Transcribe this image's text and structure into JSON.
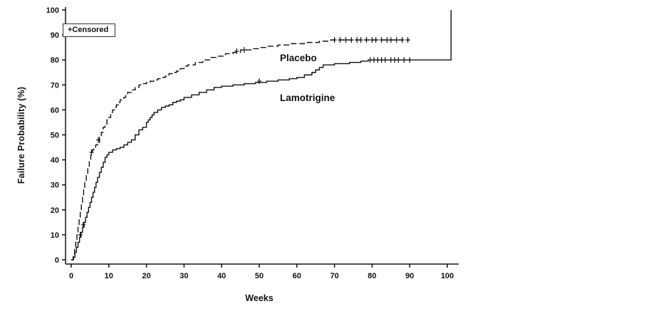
{
  "figure": {
    "background": "#ffffff",
    "line_color": "#111111"
  },
  "chart_data": {
    "type": "line",
    "subtype": "kaplan-meier-step",
    "title": "",
    "xlabel": "Weeks",
    "ylabel": "Failure Probability (%)",
    "xlim": [
      0,
      100
    ],
    "ylim": [
      0,
      100
    ],
    "xticks": [
      0,
      10,
      20,
      30,
      40,
      50,
      60,
      70,
      80,
      90,
      100
    ],
    "yticks": [
      0,
      10,
      20,
      30,
      40,
      50,
      60,
      70,
      80,
      90,
      100
    ],
    "grid": false,
    "legend": {
      "label": "+Censored",
      "position": "top-left"
    },
    "series": [
      {
        "name": "Placebo",
        "line_style": "dashed",
        "label_pos": [
          55.5,
          79.5
        ],
        "points": [
          [
            0,
            0
          ],
          [
            0.5,
            2
          ],
          [
            0.9,
            4
          ],
          [
            1.2,
            7
          ],
          [
            1.5,
            10
          ],
          [
            1.8,
            13
          ],
          [
            2.1,
            16
          ],
          [
            2.4,
            19
          ],
          [
            2.7,
            22
          ],
          [
            3,
            25
          ],
          [
            3.3,
            28
          ],
          [
            3.6,
            31
          ],
          [
            4,
            34
          ],
          [
            4.4,
            37
          ],
          [
            4.8,
            40
          ],
          [
            5.2,
            42
          ],
          [
            5.6,
            44
          ],
          [
            6,
            45
          ],
          [
            6.5,
            46
          ],
          [
            7,
            47
          ],
          [
            7.5,
            49
          ],
          [
            8,
            51
          ],
          [
            8.5,
            53
          ],
          [
            9,
            54
          ],
          [
            9.5,
            56
          ],
          [
            10,
            57
          ],
          [
            10.5,
            59
          ],
          [
            11,
            60
          ],
          [
            11.5,
            61
          ],
          [
            12,
            62
          ],
          [
            12.5,
            63
          ],
          [
            13,
            64
          ],
          [
            14,
            65
          ],
          [
            14.5,
            66
          ],
          [
            15,
            67
          ],
          [
            16,
            68
          ],
          [
            17,
            69
          ],
          [
            18,
            70
          ],
          [
            19,
            70.5
          ],
          [
            20,
            71
          ],
          [
            21,
            71.5
          ],
          [
            22,
            72
          ],
          [
            23,
            72.5
          ],
          [
            24,
            73
          ],
          [
            25,
            73.5
          ],
          [
            26,
            74.5
          ],
          [
            27,
            75
          ],
          [
            28,
            75.5
          ],
          [
            29,
            76.5
          ],
          [
            30,
            77.5
          ],
          [
            31,
            78
          ],
          [
            33,
            79
          ],
          [
            35,
            80
          ],
          [
            37,
            81
          ],
          [
            39,
            81.5
          ],
          [
            41,
            82.5
          ],
          [
            43,
            83
          ],
          [
            45,
            84
          ],
          [
            48,
            84.5
          ],
          [
            50,
            85
          ],
          [
            52,
            85.5
          ],
          [
            55,
            86
          ],
          [
            58,
            86.5
          ],
          [
            62,
            87
          ],
          [
            66,
            87.5
          ],
          [
            69,
            88
          ],
          [
            90,
            88
          ]
        ],
        "censored": [
          [
            5.4,
            43
          ],
          [
            7.2,
            48
          ],
          [
            44,
            83.5
          ],
          [
            46,
            84
          ],
          [
            70,
            88
          ],
          [
            71.5,
            88
          ],
          [
            73,
            88
          ],
          [
            74.5,
            88
          ],
          [
            76,
            88
          ],
          [
            77,
            88
          ],
          [
            78.5,
            88
          ],
          [
            80,
            88
          ],
          [
            81,
            88
          ],
          [
            82.5,
            88
          ],
          [
            84,
            88
          ],
          [
            85,
            88
          ],
          [
            86.5,
            88
          ],
          [
            88,
            88
          ],
          [
            89.5,
            88
          ]
        ]
      },
      {
        "name": "Lamotrigine",
        "line_style": "solid",
        "label_pos": [
          55.5,
          63.5
        ],
        "points": [
          [
            0,
            0
          ],
          [
            0.6,
            1
          ],
          [
            1,
            3
          ],
          [
            1.4,
            5
          ],
          [
            1.8,
            7
          ],
          [
            2.2,
            9
          ],
          [
            2.6,
            11
          ],
          [
            3,
            13
          ],
          [
            3.4,
            15
          ],
          [
            3.8,
            17
          ],
          [
            4.2,
            19
          ],
          [
            4.6,
            21
          ],
          [
            5,
            23
          ],
          [
            5.4,
            25
          ],
          [
            5.8,
            27
          ],
          [
            6.2,
            29
          ],
          [
            6.6,
            31
          ],
          [
            7,
            33
          ],
          [
            7.5,
            35
          ],
          [
            8,
            37
          ],
          [
            8.5,
            39
          ],
          [
            9,
            41
          ],
          [
            9.5,
            42
          ],
          [
            10,
            43
          ],
          [
            11,
            44
          ],
          [
            12,
            44.5
          ],
          [
            13,
            45
          ],
          [
            14,
            46
          ],
          [
            15,
            47
          ],
          [
            16,
            48
          ],
          [
            17,
            50
          ],
          [
            18,
            52
          ],
          [
            19,
            53
          ],
          [
            20,
            55
          ],
          [
            20.5,
            56
          ],
          [
            21,
            57
          ],
          [
            21.5,
            58
          ],
          [
            22,
            59
          ],
          [
            23,
            60
          ],
          [
            24,
            61
          ],
          [
            25,
            61.5
          ],
          [
            26,
            62
          ],
          [
            27,
            63
          ],
          [
            28,
            63.5
          ],
          [
            29,
            64
          ],
          [
            30,
            65
          ],
          [
            32,
            66
          ],
          [
            34,
            67
          ],
          [
            36,
            68
          ],
          [
            38,
            69
          ],
          [
            40,
            69.5
          ],
          [
            43,
            70
          ],
          [
            46,
            70.5
          ],
          [
            49,
            71
          ],
          [
            52,
            71.5
          ],
          [
            55,
            72
          ],
          [
            58,
            72.5
          ],
          [
            60,
            73
          ],
          [
            62,
            74
          ],
          [
            64,
            75
          ],
          [
            65,
            76
          ],
          [
            66,
            77
          ],
          [
            67,
            78
          ],
          [
            70,
            78.5
          ],
          [
            74,
            79
          ],
          [
            77,
            79.5
          ],
          [
            79,
            80
          ],
          [
            100,
            80
          ],
          [
            101,
            100
          ]
        ],
        "censored": [
          [
            2.4,
            10
          ],
          [
            3.2,
            14
          ],
          [
            50,
            71.5
          ],
          [
            79.5,
            80
          ],
          [
            80.5,
            80
          ],
          [
            81.5,
            80
          ],
          [
            82.5,
            80
          ],
          [
            83.5,
            80
          ],
          [
            85,
            80
          ],
          [
            86,
            80
          ],
          [
            87,
            80
          ],
          [
            88.5,
            80
          ],
          [
            90,
            80
          ]
        ]
      }
    ]
  }
}
